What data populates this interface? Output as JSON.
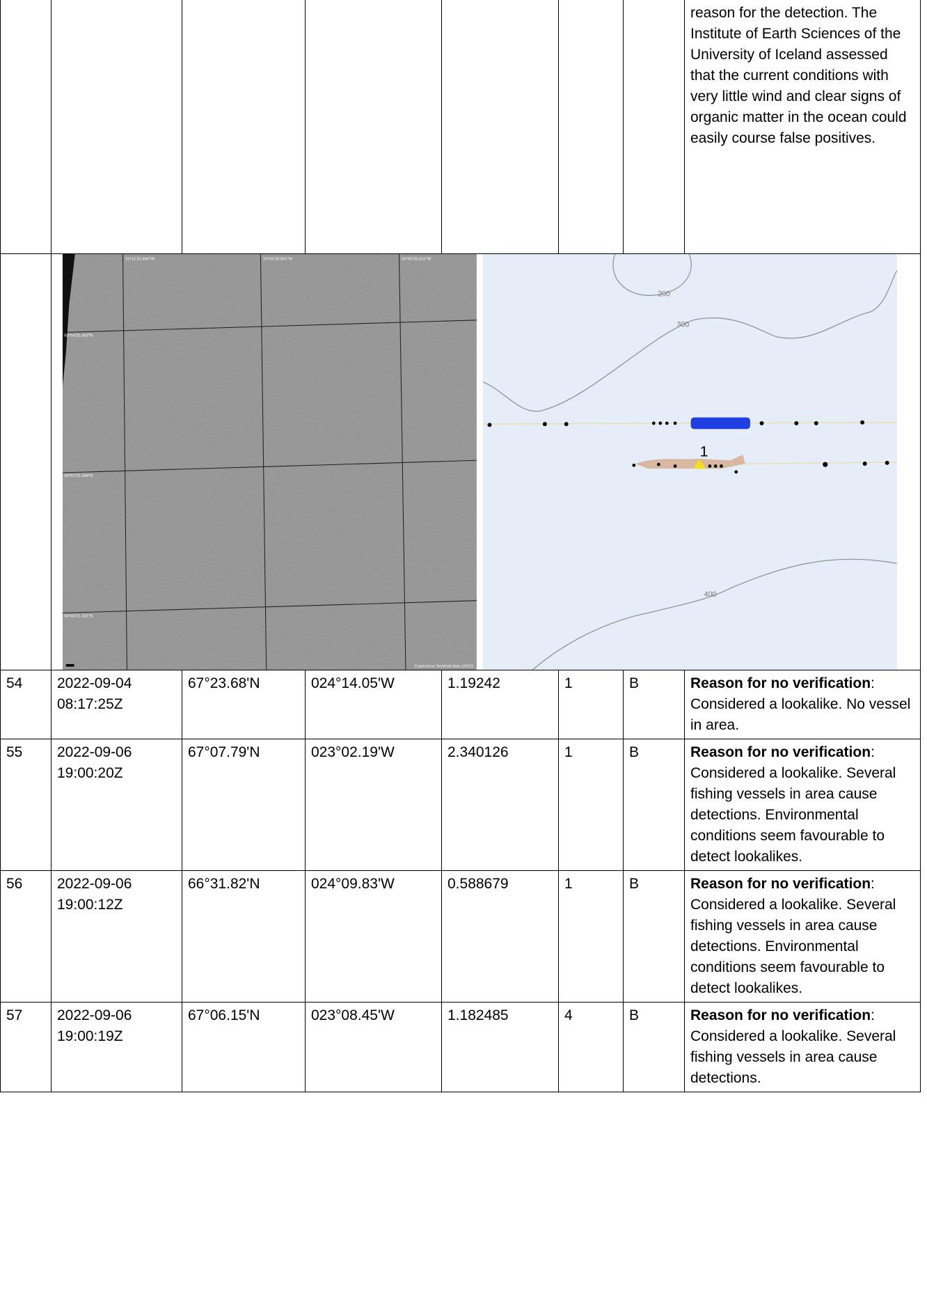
{
  "table": {
    "continued_note": "reason for the detection. The Institute of Earth Sciences of the University of Iceland assessed that the current conditions with very little wind and clear signs of organic matter in the ocean could easily course false positives.",
    "figure": {
      "satellite_labels": [
        "25°11'32.460\"W",
        "25°03'28.961\"W",
        "24°55'25.032\"W",
        "63°54'25.363\"N",
        "63°51'23.349\"N",
        "63°48'21.331\"N",
        "Copernicus Sentinel data (2022)"
      ],
      "map_labels": [
        "200",
        "300",
        "400",
        "1"
      ]
    },
    "rows": [
      {
        "cells": [
          "54",
          "2022-09-04 08:17:25Z",
          "67°23.68'N",
          "024°14.05'W",
          "1.19242",
          "1",
          "B"
        ],
        "note_label": "Reason for no verification",
        "note_text": ": Considered a lookalike. No vessel in area."
      },
      {
        "cells": [
          "55",
          "2022-09-06 19:00:20Z",
          "67°07.79'N",
          "023°02.19'W",
          "2.340126",
          "1",
          "B"
        ],
        "note_label": "Reason for no verification",
        "note_text": ": Considered a lookalike. Several fishing vessels in area cause detections. Environmental conditions seem favourable to detect lookalikes."
      },
      {
        "cells": [
          "56",
          "2022-09-06 19:00:12Z",
          "66°31.82'N",
          "024°09.83'W",
          "0.588679",
          "1",
          "B"
        ],
        "note_label": "Reason for no verification",
        "note_text": ": Considered a lookalike. Several fishing vessels in area cause detections. Environmental conditions seem favourable to detect lookalikes."
      },
      {
        "cells": [
          "57",
          "2022-09-06 19:00:19Z",
          "67°06.15'N",
          "023°08.45'W",
          "1.182485",
          "4",
          "B"
        ],
        "note_label": "Reason for no verification",
        "note_text": ": Considered a lookalike. Several fishing vessels in area cause detections."
      }
    ]
  }
}
